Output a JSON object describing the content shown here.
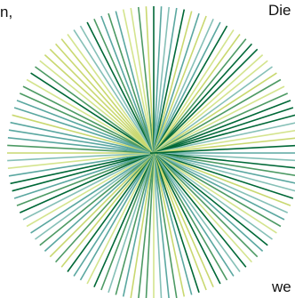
{
  "text_fragments": {
    "left": "n,",
    "top_right": "Die",
    "bottom_right": "we"
  },
  "starburst": {
    "colors": [
      "#006837",
      "#4d9a64",
      "#5aa7a0",
      "#86c0b7",
      "#d4e48e",
      "#c9d870"
    ],
    "ray_count": 120
  }
}
